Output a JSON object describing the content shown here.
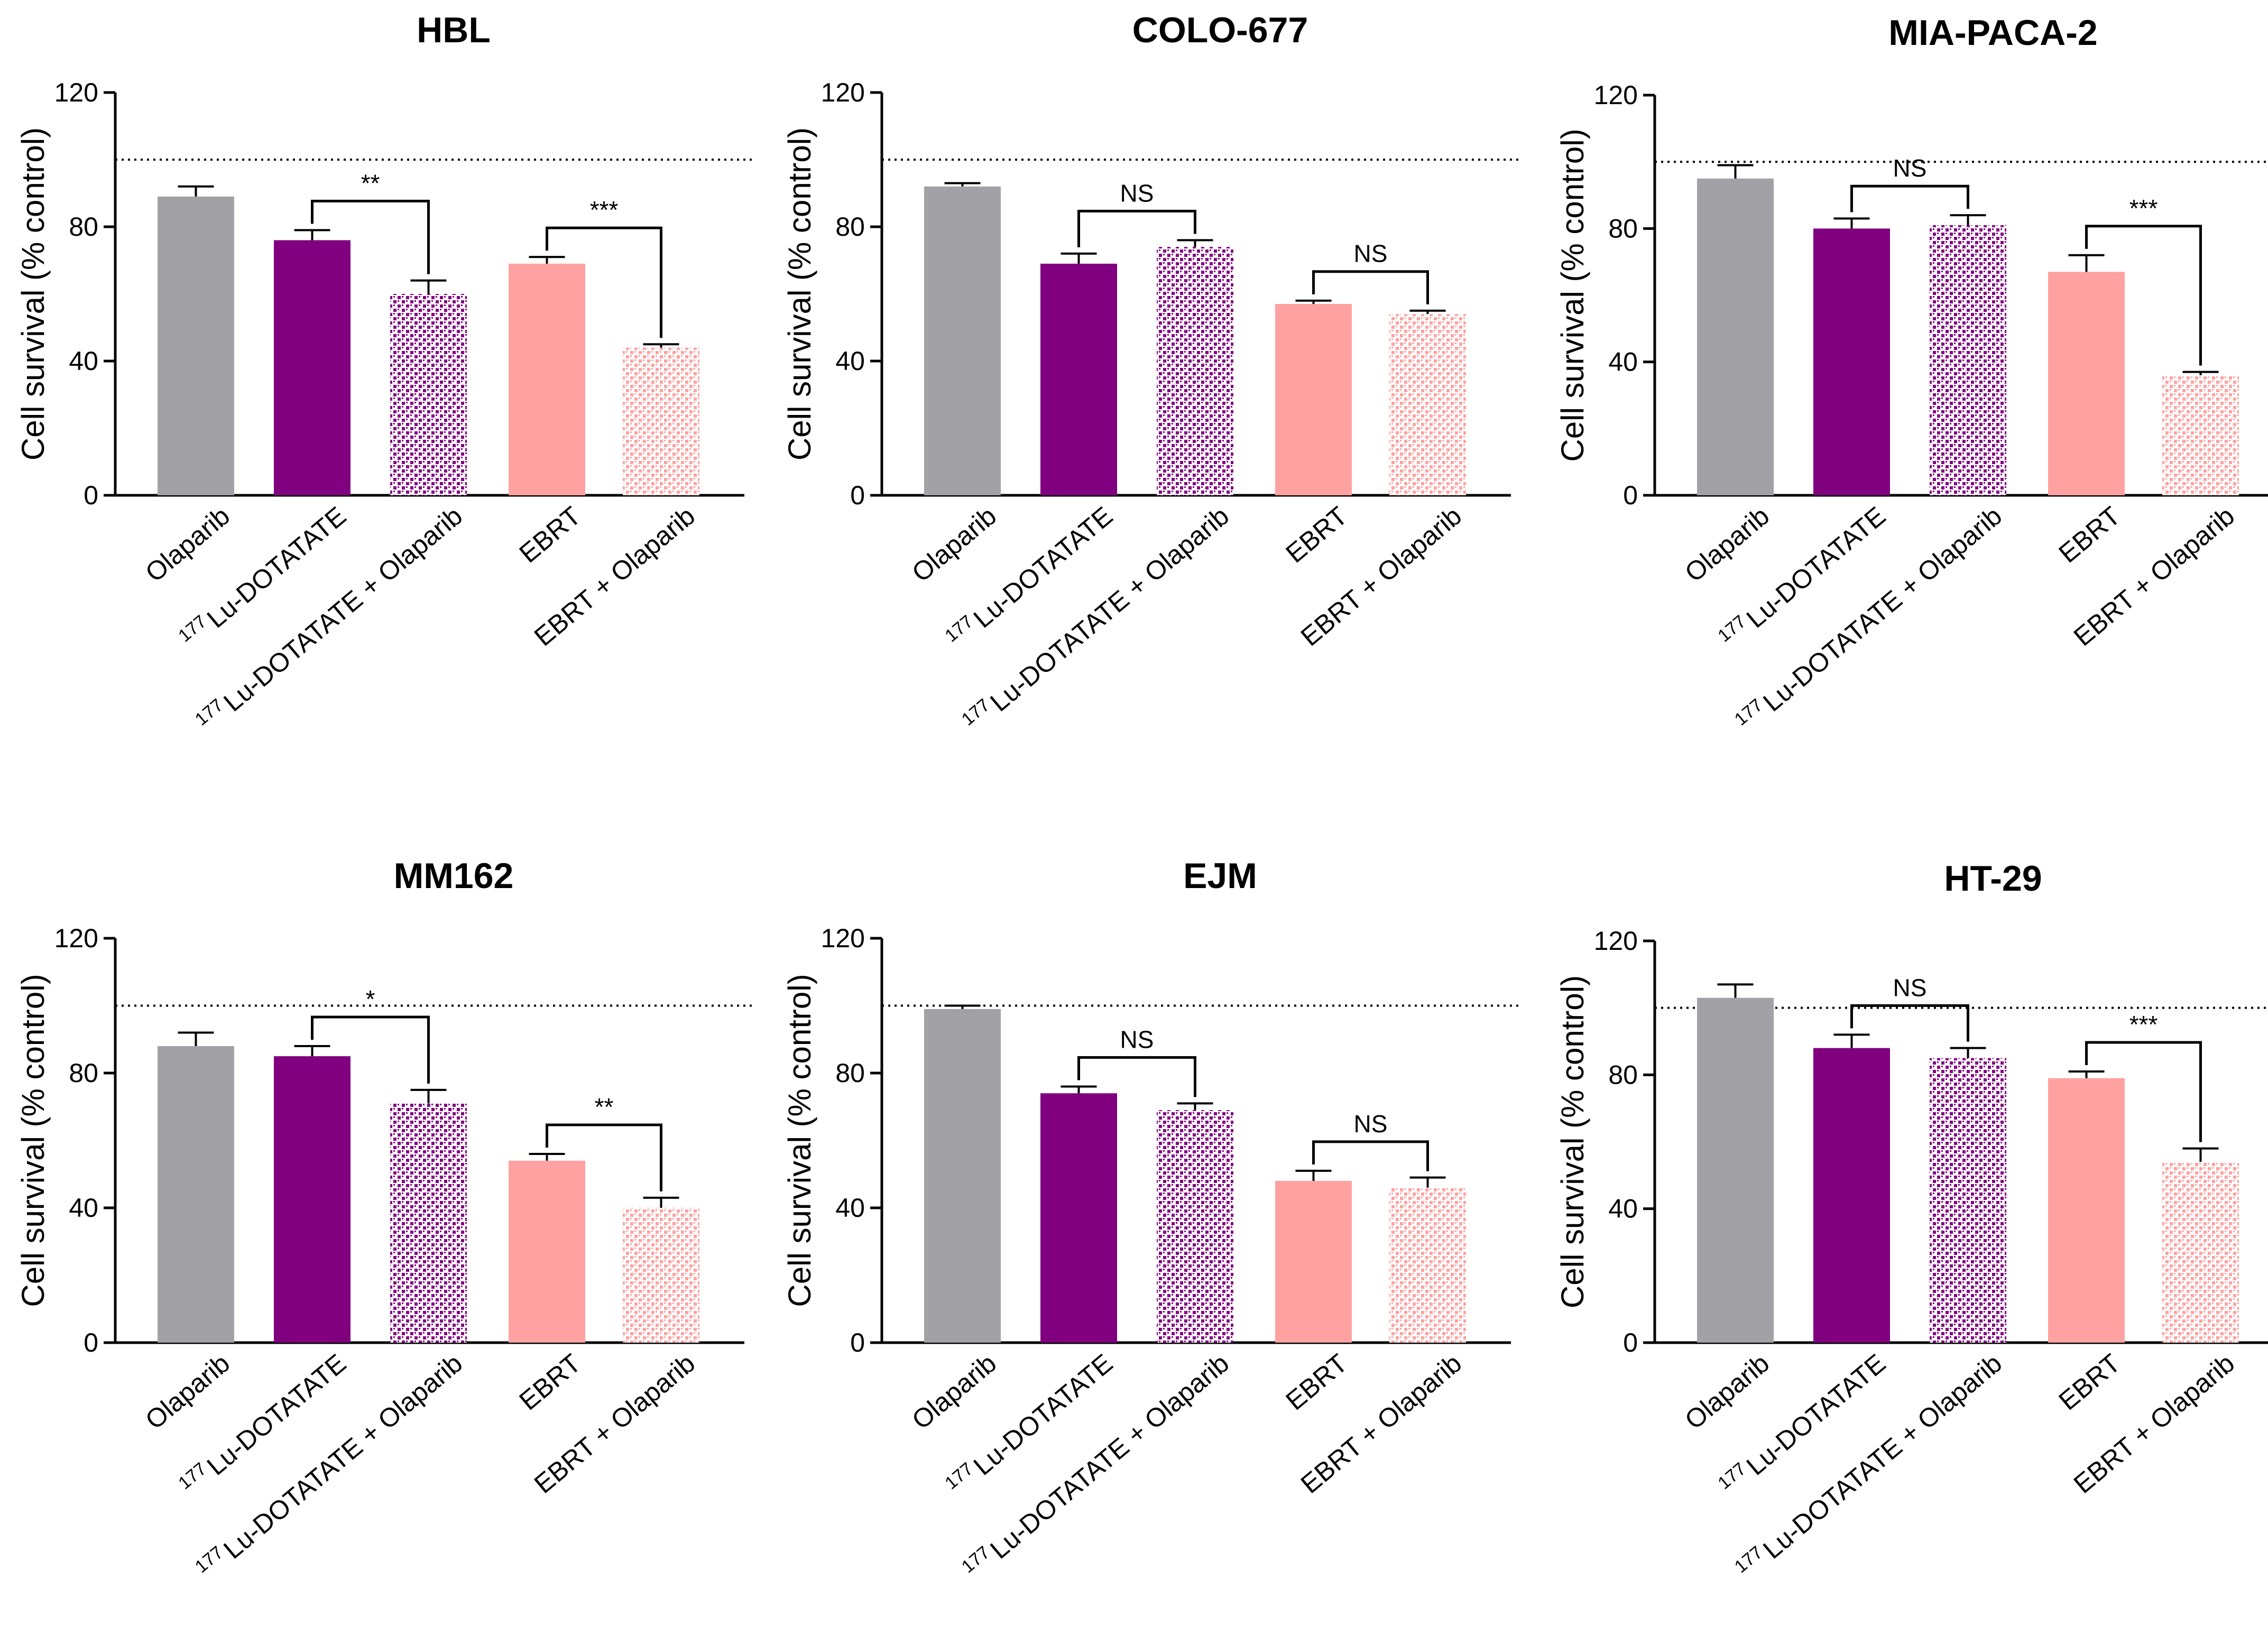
{
  "chart_data": [
    {
      "type": "bar",
      "title": "HBL",
      "ylabel": "Cell survival (% control)",
      "xlabel": "",
      "ylim": [
        0,
        120
      ],
      "yticks": [
        "0",
        "40",
        "80",
        "120"
      ],
      "reference_line": 100,
      "categories": [
        "Olaparib",
        "Lu-DOTATATE",
        "Lu-DOTATATE + Olaparib",
        "EBRT",
        "EBRT + Olaparib"
      ],
      "category_superscripts": [
        "",
        "177",
        "177",
        "",
        ""
      ],
      "values": [
        89,
        76,
        60,
        69,
        44
      ],
      "errors": [
        3,
        3,
        4,
        2,
        1
      ],
      "comparisons": [
        {
          "from": 1,
          "to": 2,
          "label": "**"
        },
        {
          "from": 3,
          "to": 4,
          "label": "***"
        }
      ]
    },
    {
      "type": "bar",
      "title": "COLO-677",
      "ylabel": "Cell survival (% control)",
      "xlabel": "",
      "ylim": [
        0,
        120
      ],
      "yticks": [
        "0",
        "40",
        "80",
        "120"
      ],
      "reference_line": 100,
      "categories": [
        "Olaparib",
        "Lu-DOTATATE",
        "Lu-DOTATATE + Olaparib",
        "EBRT",
        "EBRT + Olaparib"
      ],
      "category_superscripts": [
        "",
        "177",
        "177",
        "",
        ""
      ],
      "values": [
        92,
        69,
        74,
        57,
        54
      ],
      "errors": [
        1,
        3,
        2,
        1,
        1
      ],
      "comparisons": [
        {
          "from": 1,
          "to": 2,
          "label": "NS"
        },
        {
          "from": 3,
          "to": 4,
          "label": "NS"
        }
      ]
    },
    {
      "type": "bar",
      "title": "MIA-PACA-2",
      "ylabel": "Cell survival (% control)",
      "xlabel": "",
      "ylim": [
        0,
        120
      ],
      "yticks": [
        "0",
        "40",
        "80",
        "120"
      ],
      "reference_line": 100,
      "categories": [
        "Olaparib",
        "Lu-DOTATATE",
        "Lu-DOTATATE + Olaparib",
        "EBRT",
        "EBRT + Olaparib"
      ],
      "category_superscripts": [
        "",
        "177",
        "177",
        "",
        ""
      ],
      "values": [
        95,
        80,
        81,
        67,
        36
      ],
      "errors": [
        4,
        3,
        3,
        5,
        1
      ],
      "comparisons": [
        {
          "from": 1,
          "to": 2,
          "label": "NS"
        },
        {
          "from": 3,
          "to": 4,
          "label": "***"
        }
      ]
    },
    {
      "type": "bar",
      "title": "MM162",
      "ylabel": "Cell survival (% control)",
      "xlabel": "",
      "ylim": [
        0,
        120
      ],
      "yticks": [
        "0",
        "40",
        "80",
        "120"
      ],
      "reference_line": 100,
      "categories": [
        "Olaparib",
        "Lu-DOTATATE",
        "Lu-DOTATATE + Olaparib",
        "EBRT",
        "EBRT + Olaparib"
      ],
      "category_superscripts": [
        "",
        "177",
        "177",
        "",
        ""
      ],
      "values": [
        88,
        85,
        71,
        54,
        40
      ],
      "errors": [
        4,
        3,
        4,
        2,
        3
      ],
      "comparisons": [
        {
          "from": 1,
          "to": 2,
          "label": "*"
        },
        {
          "from": 3,
          "to": 4,
          "label": "**"
        }
      ]
    },
    {
      "type": "bar",
      "title": "EJM",
      "ylabel": "Cell survival (% control)",
      "xlabel": "",
      "ylim": [
        0,
        120
      ],
      "yticks": [
        "0",
        "40",
        "80",
        "120"
      ],
      "reference_line": 100,
      "categories": [
        "Olaparib",
        "Lu-DOTATATE",
        "Lu-DOTATATE + Olaparib",
        "EBRT",
        "EBRT + Olaparib"
      ],
      "category_superscripts": [
        "",
        "177",
        "177",
        "",
        ""
      ],
      "values": [
        99,
        74,
        69,
        48,
        46
      ],
      "errors": [
        1,
        2,
        2,
        3,
        3
      ],
      "comparisons": [
        {
          "from": 1,
          "to": 2,
          "label": "NS"
        },
        {
          "from": 3,
          "to": 4,
          "label": "NS"
        }
      ]
    },
    {
      "type": "bar",
      "title": "HT-29",
      "ylabel": "Cell survival (% control)",
      "xlabel": "",
      "ylim": [
        0,
        120
      ],
      "yticks": [
        "0",
        "40",
        "80",
        "120"
      ],
      "reference_line": 100,
      "categories": [
        "Olaparib",
        "Lu-DOTATATE",
        "Lu-DOTATATE + Olaparib",
        "EBRT",
        "EBRT + Olaparib"
      ],
      "category_superscripts": [
        "",
        "177",
        "177",
        "",
        ""
      ],
      "values": [
        103,
        88,
        85,
        79,
        54
      ],
      "errors": [
        4,
        4,
        3,
        2,
        4
      ],
      "comparisons": [
        {
          "from": 1,
          "to": 2,
          "label": "NS"
        },
        {
          "from": 3,
          "to": 4,
          "label": "***"
        }
      ]
    }
  ],
  "colors": {
    "olaparib": "#A2A1A6",
    "lu_dotatate": "#800080",
    "ebrt": "#FFA1A1",
    "axis": "#000000"
  }
}
